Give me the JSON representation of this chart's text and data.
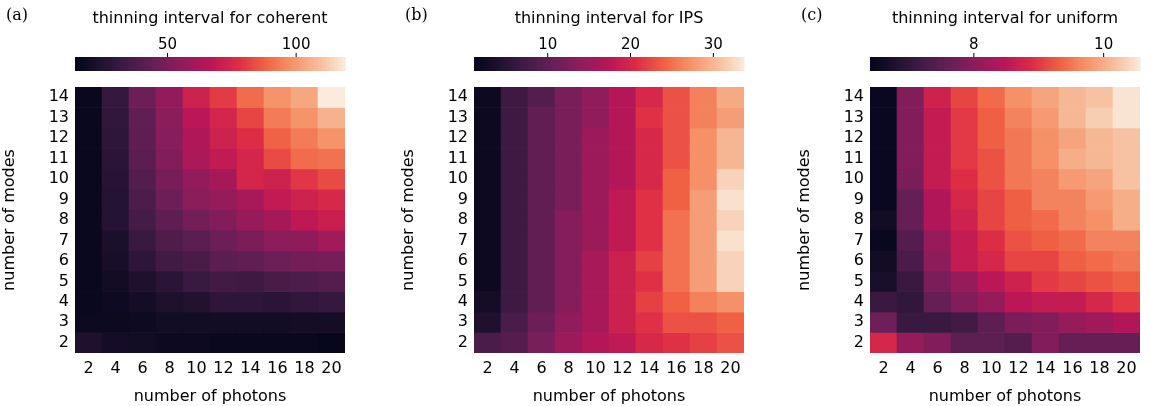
{
  "chart_data": [
    {
      "type": "heatmap",
      "annotations": [
        "(a)"
      ],
      "clabel": "thinning interval for coherent",
      "xlabel": "number of photons",
      "ylabel": "number of modes",
      "clim": [
        14,
        119
      ],
      "cticks": [
        50,
        100
      ],
      "categories": [
        "2",
        "4",
        "6",
        "8",
        "10",
        "12",
        "14",
        "16",
        "18",
        "20"
      ],
      "y_categories": [
        "14",
        "13",
        "12",
        "11",
        "10",
        "9",
        "8",
        "7",
        "6",
        "5",
        "4",
        "3",
        "2"
      ],
      "cells": [
        [
          16,
          30,
          46,
          56,
          72,
          80,
          90,
          98,
          103,
          119
        ],
        [
          16,
          29,
          43,
          54,
          67,
          74,
          82,
          93,
          98,
          106
        ],
        [
          16,
          28,
          42,
          53,
          64,
          72,
          77,
          88,
          93,
          98
        ],
        [
          16,
          27,
          41,
          52,
          63,
          69,
          74,
          83,
          90,
          91
        ],
        [
          16,
          26,
          39,
          49,
          56,
          61,
          74,
          72,
          79,
          83
        ],
        [
          16,
          25,
          37,
          46,
          54,
          57,
          62,
          69,
          72,
          75
        ],
        [
          16,
          25,
          35,
          42,
          48,
          52,
          57,
          61,
          68,
          71
        ],
        [
          16,
          22,
          31,
          38,
          41,
          46,
          50,
          54,
          55,
          60
        ],
        [
          16,
          21,
          28,
          34,
          36,
          41,
          43,
          46,
          48,
          49
        ],
        [
          16,
          19,
          23,
          27,
          31,
          34,
          33,
          36,
          37,
          39
        ],
        [
          16,
          18,
          20,
          23,
          24,
          28,
          28,
          27,
          29,
          30
        ],
        [
          17,
          17,
          18,
          19,
          19,
          19,
          19,
          19,
          20,
          20
        ],
        [
          23,
          20,
          19,
          17,
          17,
          16,
          16,
          16,
          16,
          15
        ]
      ]
    },
    {
      "type": "heatmap",
      "annotations": [
        "(b)"
      ],
      "clabel": "thinning interval for IPS",
      "xlabel": "number of photons",
      "ylabel": "number of modes",
      "clim": [
        1.1,
        33.7
      ],
      "cticks": [
        10,
        20,
        30
      ],
      "categories": [
        "2",
        "4",
        "6",
        "8",
        "10",
        "12",
        "14",
        "16",
        "18",
        "20"
      ],
      "y_categories": [
        "14",
        "13",
        "12",
        "11",
        "10",
        "9",
        "8",
        "7",
        "6",
        "5",
        "4",
        "3",
        "2"
      ],
      "cells": [
        [
          2,
          7,
          9,
          12,
          14,
          17,
          20,
          23,
          26,
          29
        ],
        [
          2,
          7,
          10,
          12,
          14,
          17,
          21,
          23,
          26,
          28
        ],
        [
          2,
          7,
          10,
          12,
          15,
          17,
          20,
          23,
          27,
          30
        ],
        [
          2,
          7,
          10,
          12,
          15,
          17,
          20,
          23,
          27,
          30
        ],
        [
          2,
          7,
          10,
          12,
          15,
          17,
          20,
          24,
          27,
          32
        ],
        [
          2,
          7,
          10,
          12,
          15,
          18,
          21,
          24,
          28,
          33
        ],
        [
          2,
          7,
          10,
          13,
          15,
          18,
          21,
          25,
          28,
          32
        ],
        [
          2,
          7,
          10,
          13,
          15,
          18,
          21,
          25,
          28,
          33
        ],
        [
          2,
          7,
          10,
          13,
          16,
          19,
          22,
          25,
          28,
          32
        ],
        [
          2,
          7,
          10,
          13,
          16,
          19,
          21,
          25,
          28,
          32
        ],
        [
          3,
          7,
          10,
          13,
          16,
          19,
          22,
          24,
          26,
          27
        ],
        [
          4,
          8,
          11,
          14,
          16,
          19,
          21,
          23,
          23,
          24
        ],
        [
          8,
          9,
          12,
          15,
          17,
          18,
          20,
          21,
          22,
          23
        ]
      ]
    },
    {
      "type": "heatmap",
      "annotations": [
        "(c)"
      ],
      "clabel": "thinning interval for uniform",
      "xlabel": "number of photons",
      "ylabel": "number of modes",
      "clim": [
        6.4,
        10.56
      ],
      "cticks": [
        8,
        10
      ],
      "categories": [
        "2",
        "4",
        "6",
        "8",
        "10",
        "12",
        "14",
        "16",
        "18",
        "20"
      ],
      "y_categories": [
        "14",
        "13",
        "12",
        "11",
        "10",
        "9",
        "8",
        "7",
        "6",
        "5",
        "4",
        "3",
        "2"
      ],
      "cells": [
        [
          6.5,
          7.9,
          8.7,
          9.1,
          9.4,
          9.7,
          9.9,
          10.1,
          10.2,
          10.5
        ],
        [
          6.5,
          7.9,
          8.6,
          9.0,
          9.3,
          9.6,
          9.8,
          10.1,
          10.3,
          10.5
        ],
        [
          6.5,
          7.9,
          8.6,
          9.0,
          9.3,
          9.5,
          9.7,
          9.9,
          10.1,
          10.2
        ],
        [
          6.5,
          7.9,
          8.6,
          9.0,
          9.2,
          9.5,
          9.7,
          10.0,
          10.1,
          10.2
        ],
        [
          6.5,
          7.8,
          8.6,
          8.9,
          9.2,
          9.5,
          9.6,
          9.8,
          9.9,
          10.2
        ],
        [
          6.5,
          7.6,
          8.4,
          8.8,
          9.1,
          9.3,
          9.6,
          9.6,
          9.8,
          10.0
        ],
        [
          6.6,
          7.6,
          8.4,
          8.7,
          9.1,
          9.3,
          9.4,
          9.6,
          9.7,
          10.0
        ],
        [
          6.5,
          7.4,
          8.1,
          8.6,
          8.9,
          9.2,
          9.3,
          9.4,
          9.6,
          9.6
        ],
        [
          6.6,
          7.3,
          8.0,
          8.6,
          8.8,
          9.1,
          9.1,
          9.3,
          9.4,
          9.5
        ],
        [
          6.7,
          7.1,
          7.8,
          8.1,
          8.5,
          8.7,
          9.0,
          9.1,
          9.2,
          9.3
        ],
        [
          7.1,
          7.0,
          7.6,
          7.9,
          8.1,
          8.5,
          8.6,
          8.6,
          8.8,
          9.0
        ],
        [
          7.7,
          7.1,
          7.1,
          7.2,
          7.5,
          7.8,
          7.9,
          8.1,
          8.2,
          8.4
        ],
        [
          8.8,
          8.1,
          7.9,
          7.5,
          7.5,
          7.4,
          7.9,
          7.6,
          7.6,
          7.6
        ]
      ]
    }
  ]
}
